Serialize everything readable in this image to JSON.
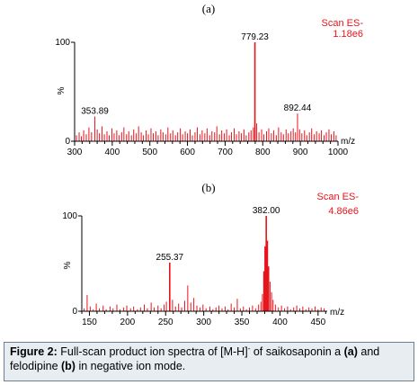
{
  "colors": {
    "signal": "#e8141b",
    "axis": "#000000",
    "scan_label": "#e8141b",
    "caption_bg": "#e8edf2"
  },
  "chart_data": [
    {
      "type": "bar",
      "panel_label": "(a)",
      "scan_mode": "Scan ES-",
      "intensity": "1.18e6",
      "xlabel": "m/z",
      "ylabel": "%",
      "xlim": [
        300,
        1000
      ],
      "ylim": [
        0,
        100
      ],
      "x_ticks": [
        "300",
        "400",
        "500",
        "600",
        "700",
        "800",
        "900",
        "1000"
      ],
      "y_ticks": [
        "0",
        "100"
      ],
      "labeled_peaks": [
        {
          "mz": "779.23",
          "x": 779.23,
          "y": 100
        },
        {
          "mz": "892.44",
          "x": 892.44,
          "y": 28
        },
        {
          "mz": "353.89",
          "x": 353.89,
          "y": 25
        }
      ],
      "peaks": [
        {
          "x": 305,
          "y": 6
        },
        {
          "x": 312,
          "y": 9
        },
        {
          "x": 318,
          "y": 5
        },
        {
          "x": 324,
          "y": 11
        },
        {
          "x": 331,
          "y": 7
        },
        {
          "x": 338,
          "y": 14
        },
        {
          "x": 345,
          "y": 9
        },
        {
          "x": 353.89,
          "y": 25
        },
        {
          "x": 360,
          "y": 12
        },
        {
          "x": 366,
          "y": 8
        },
        {
          "x": 373,
          "y": 15
        },
        {
          "x": 379,
          "y": 7
        },
        {
          "x": 386,
          "y": 10
        },
        {
          "x": 392,
          "y": 6
        },
        {
          "x": 399,
          "y": 13
        },
        {
          "x": 405,
          "y": 8
        },
        {
          "x": 412,
          "y": 11
        },
        {
          "x": 418,
          "y": 6
        },
        {
          "x": 425,
          "y": 9
        },
        {
          "x": 431,
          "y": 14
        },
        {
          "x": 438,
          "y": 7
        },
        {
          "x": 444,
          "y": 10
        },
        {
          "x": 451,
          "y": 6
        },
        {
          "x": 457,
          "y": 12
        },
        {
          "x": 464,
          "y": 8
        },
        {
          "x": 470,
          "y": 15
        },
        {
          "x": 477,
          "y": 9
        },
        {
          "x": 483,
          "y": 6
        },
        {
          "x": 490,
          "y": 11
        },
        {
          "x": 496,
          "y": 7
        },
        {
          "x": 503,
          "y": 13
        },
        {
          "x": 509,
          "y": 8
        },
        {
          "x": 516,
          "y": 10
        },
        {
          "x": 522,
          "y": 6
        },
        {
          "x": 529,
          "y": 12
        },
        {
          "x": 535,
          "y": 9
        },
        {
          "x": 542,
          "y": 7
        },
        {
          "x": 548,
          "y": 14
        },
        {
          "x": 555,
          "y": 8
        },
        {
          "x": 561,
          "y": 11
        },
        {
          "x": 568,
          "y": 6
        },
        {
          "x": 574,
          "y": 9
        },
        {
          "x": 581,
          "y": 13
        },
        {
          "x": 587,
          "y": 7
        },
        {
          "x": 594,
          "y": 10
        },
        {
          "x": 600,
          "y": 8
        },
        {
          "x": 607,
          "y": 12
        },
        {
          "x": 613,
          "y": 6
        },
        {
          "x": 620,
          "y": 9
        },
        {
          "x": 626,
          "y": 14
        },
        {
          "x": 633,
          "y": 7
        },
        {
          "x": 639,
          "y": 11
        },
        {
          "x": 646,
          "y": 8
        },
        {
          "x": 652,
          "y": 13
        },
        {
          "x": 659,
          "y": 6
        },
        {
          "x": 665,
          "y": 10
        },
        {
          "x": 672,
          "y": 9
        },
        {
          "x": 678,
          "y": 15
        },
        {
          "x": 685,
          "y": 7
        },
        {
          "x": 691,
          "y": 11
        },
        {
          "x": 698,
          "y": 8
        },
        {
          "x": 704,
          "y": 12
        },
        {
          "x": 711,
          "y": 6
        },
        {
          "x": 717,
          "y": 9
        },
        {
          "x": 724,
          "y": 13
        },
        {
          "x": 730,
          "y": 7
        },
        {
          "x": 737,
          "y": 10
        },
        {
          "x": 743,
          "y": 8
        },
        {
          "x": 750,
          "y": 12
        },
        {
          "x": 756,
          "y": 6
        },
        {
          "x": 763,
          "y": 9
        },
        {
          "x": 769,
          "y": 11
        },
        {
          "x": 775,
          "y": 14
        },
        {
          "x": 779.23,
          "y": 100
        },
        {
          "x": 784,
          "y": 18
        },
        {
          "x": 790,
          "y": 9
        },
        {
          "x": 797,
          "y": 12
        },
        {
          "x": 803,
          "y": 7
        },
        {
          "x": 810,
          "y": 10
        },
        {
          "x": 816,
          "y": 13
        },
        {
          "x": 823,
          "y": 8
        },
        {
          "x": 829,
          "y": 11
        },
        {
          "x": 836,
          "y": 6
        },
        {
          "x": 842,
          "y": 14
        },
        {
          "x": 849,
          "y": 9
        },
        {
          "x": 855,
          "y": 7
        },
        {
          "x": 862,
          "y": 12
        },
        {
          "x": 868,
          "y": 8
        },
        {
          "x": 875,
          "y": 10
        },
        {
          "x": 881,
          "y": 13
        },
        {
          "x": 887,
          "y": 9
        },
        {
          "x": 892.44,
          "y": 28
        },
        {
          "x": 898,
          "y": 12
        },
        {
          "x": 904,
          "y": 8
        },
        {
          "x": 911,
          "y": 11
        },
        {
          "x": 917,
          "y": 6
        },
        {
          "x": 924,
          "y": 9
        },
        {
          "x": 930,
          "y": 13
        },
        {
          "x": 937,
          "y": 7
        },
        {
          "x": 943,
          "y": 10
        },
        {
          "x": 950,
          "y": 8
        },
        {
          "x": 956,
          "y": 11
        },
        {
          "x": 963,
          "y": 6
        },
        {
          "x": 969,
          "y": 9
        },
        {
          "x": 976,
          "y": 12
        },
        {
          "x": 982,
          "y": 7
        },
        {
          "x": 989,
          "y": 10
        },
        {
          "x": 995,
          "y": 6
        }
      ]
    },
    {
      "type": "bar",
      "panel_label": "(b)",
      "scan_mode": "Scan ES-",
      "intensity": "4.86e6",
      "xlabel": "m/z",
      "ylabel": "%",
      "xlim": [
        140,
        462
      ],
      "ylim": [
        0,
        100
      ],
      "x_ticks": [
        "150",
        "200",
        "250",
        "300",
        "350",
        "400",
        "450"
      ],
      "y_ticks": [
        "0",
        "100"
      ],
      "labeled_peaks": [
        {
          "mz": "382.00",
          "x": 382.0,
          "y": 100
        },
        {
          "mz": "255.37",
          "x": 255.37,
          "y": 51
        }
      ],
      "peaks": [
        {
          "x": 143,
          "y": 3
        },
        {
          "x": 147,
          "y": 17
        },
        {
          "x": 151,
          "y": 5
        },
        {
          "x": 155,
          "y": 2
        },
        {
          "x": 159,
          "y": 8
        },
        {
          "x": 163,
          "y": 3
        },
        {
          "x": 168,
          "y": 6
        },
        {
          "x": 172,
          "y": 2
        },
        {
          "x": 177,
          "y": 5
        },
        {
          "x": 181,
          "y": 3
        },
        {
          "x": 186,
          "y": 7
        },
        {
          "x": 190,
          "y": 2
        },
        {
          "x": 195,
          "y": 4
        },
        {
          "x": 199,
          "y": 6
        },
        {
          "x": 204,
          "y": 3
        },
        {
          "x": 208,
          "y": 5
        },
        {
          "x": 213,
          "y": 2
        },
        {
          "x": 217,
          "y": 4
        },
        {
          "x": 222,
          "y": 7
        },
        {
          "x": 226,
          "y": 3
        },
        {
          "x": 231,
          "y": 9
        },
        {
          "x": 235,
          "y": 4
        },
        {
          "x": 240,
          "y": 6
        },
        {
          "x": 244,
          "y": 3
        },
        {
          "x": 248,
          "y": 7
        },
        {
          "x": 251,
          "y": 10
        },
        {
          "x": 255.37,
          "y": 51
        },
        {
          "x": 259,
          "y": 12
        },
        {
          "x": 263,
          "y": 5
        },
        {
          "x": 267,
          "y": 8
        },
        {
          "x": 271,
          "y": 4
        },
        {
          "x": 275,
          "y": 11
        },
        {
          "x": 279,
          "y": 27
        },
        {
          "x": 283,
          "y": 9
        },
        {
          "x": 287,
          "y": 14
        },
        {
          "x": 291,
          "y": 6
        },
        {
          "x": 295,
          "y": 4
        },
        {
          "x": 299,
          "y": 7
        },
        {
          "x": 303,
          "y": 3
        },
        {
          "x": 308,
          "y": 5
        },
        {
          "x": 312,
          "y": 2
        },
        {
          "x": 316,
          "y": 4
        },
        {
          "x": 320,
          "y": 6
        },
        {
          "x": 324,
          "y": 3
        },
        {
          "x": 328,
          "y": 5
        },
        {
          "x": 332,
          "y": 2
        },
        {
          "x": 336,
          "y": 8
        },
        {
          "x": 340,
          "y": 4
        },
        {
          "x": 344,
          "y": 13
        },
        {
          "x": 348,
          "y": 3
        },
        {
          "x": 352,
          "y": 5
        },
        {
          "x": 356,
          "y": 2
        },
        {
          "x": 360,
          "y": 4
        },
        {
          "x": 364,
          "y": 6
        },
        {
          "x": 368,
          "y": 3
        },
        {
          "x": 372,
          "y": 7
        },
        {
          "x": 375,
          "y": 10
        },
        {
          "x": 377,
          "y": 18
        },
        {
          "x": 379,
          "y": 42
        },
        {
          "x": 380.5,
          "y": 68
        },
        {
          "x": 382.0,
          "y": 100
        },
        {
          "x": 383.5,
          "y": 74
        },
        {
          "x": 385,
          "y": 47
        },
        {
          "x": 387,
          "y": 31
        },
        {
          "x": 389,
          "y": 20
        },
        {
          "x": 391,
          "y": 12
        },
        {
          "x": 394,
          "y": 7
        },
        {
          "x": 398,
          "y": 4
        },
        {
          "x": 402,
          "y": 6
        },
        {
          "x": 406,
          "y": 3
        },
        {
          "x": 410,
          "y": 5
        },
        {
          "x": 414,
          "y": 2
        },
        {
          "x": 418,
          "y": 4
        },
        {
          "x": 422,
          "y": 6
        },
        {
          "x": 426,
          "y": 3
        },
        {
          "x": 430,
          "y": 5
        },
        {
          "x": 434,
          "y": 2
        },
        {
          "x": 438,
          "y": 4
        },
        {
          "x": 442,
          "y": 3
        },
        {
          "x": 446,
          "y": 5
        },
        {
          "x": 450,
          "y": 2
        },
        {
          "x": 454,
          "y": 4
        },
        {
          "x": 458,
          "y": 3
        }
      ]
    }
  ],
  "caption": {
    "label": "Figure 2:",
    "text_1": " Full-scan product ion spectra of [M-H]",
    "superscript": "-",
    "text_2": " of saikosaponin a ",
    "ref_a": "(a)",
    "text_3": " and felodipine ",
    "ref_b": "(b)",
    "text_4": " in negative ion mode."
  }
}
